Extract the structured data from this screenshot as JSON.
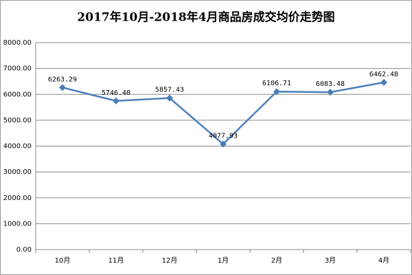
{
  "chart_data": {
    "type": "line",
    "title": "2017年10月-2018年4月商品房成交均价走势图",
    "categories": [
      "10月",
      "11月",
      "12月",
      "1月",
      "2月",
      "3月",
      "4月"
    ],
    "series": [
      {
        "color": "#4a7ebb",
        "values": [
          6263.29,
          5746.4,
          5857.43,
          4077.93,
          6106.71,
          6083.48,
          6462.48
        ],
        "value_labels": [
          "6263.29",
          "5746.40",
          "5857.43",
          "4077.93",
          "6106.71",
          "6083.48",
          "6462.48"
        ]
      }
    ],
    "ylim": [
      0,
      8000
    ],
    "yticks": [
      {
        "value": 0,
        "label": "0.00"
      },
      {
        "value": 1000,
        "label": "1000.00"
      },
      {
        "value": 2000,
        "label": "2000.00"
      },
      {
        "value": 3000,
        "label": "3000.00"
      },
      {
        "value": 4000,
        "label": "4000.00"
      },
      {
        "value": 5000,
        "label": "5000.00"
      },
      {
        "value": 6000,
        "label": "6000.00"
      },
      {
        "value": 7000,
        "label": "7000.00"
      },
      {
        "value": 8000,
        "label": "8000.00"
      }
    ],
    "grid": true
  }
}
